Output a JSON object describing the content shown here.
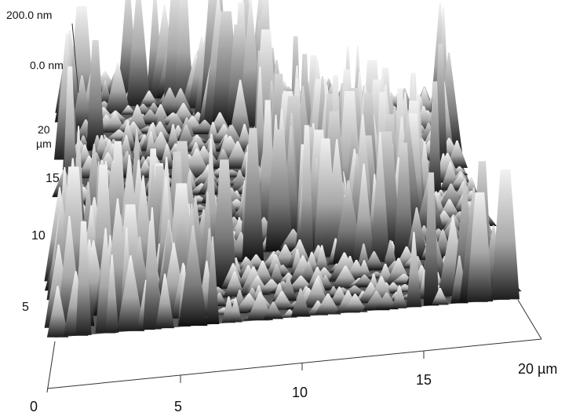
{
  "z_axis": {
    "top": "200.0 nm",
    "bottom": "0.0 nm"
  },
  "y_axis": {
    "end_value": "20",
    "end_unit": "µm",
    "ticks": [
      "15",
      "10",
      "5"
    ]
  },
  "x_axis": {
    "ticks": [
      "0",
      "5",
      "10",
      "15"
    ],
    "end": "20 µm"
  }
}
